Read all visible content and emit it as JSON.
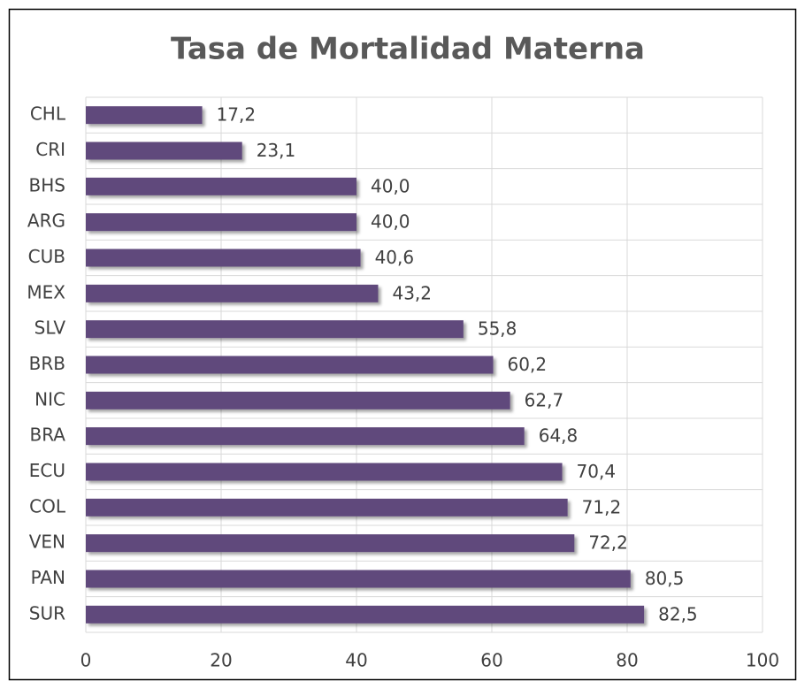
{
  "chart_data": {
    "type": "bar",
    "orientation": "horizontal",
    "title": "Tasa de Mortalidad Materna",
    "categories": [
      "CHL",
      "CRI",
      "BHS",
      "ARG",
      "CUB",
      "MEX",
      "SLV",
      "BRB",
      "NIC",
      "BRA",
      "ECU",
      "COL",
      "VEN",
      "PAN",
      "SUR"
    ],
    "values": [
      17.2,
      23.1,
      40.0,
      40.0,
      40.6,
      43.2,
      55.8,
      60.2,
      62.7,
      64.8,
      70.4,
      71.2,
      72.2,
      80.5,
      82.5
    ],
    "value_labels": [
      "17,2",
      "23,1",
      "40,0",
      "40,0",
      "40,6",
      "43,2",
      "55,8",
      "60,2",
      "62,7",
      "64,8",
      "70,4",
      "71,2",
      "72,2",
      "80,5",
      "82,5"
    ],
    "color": "#604a7b",
    "xlim": [
      0,
      100
    ],
    "xticks": [
      0,
      20,
      40,
      60,
      80,
      100
    ],
    "grid": true
  }
}
